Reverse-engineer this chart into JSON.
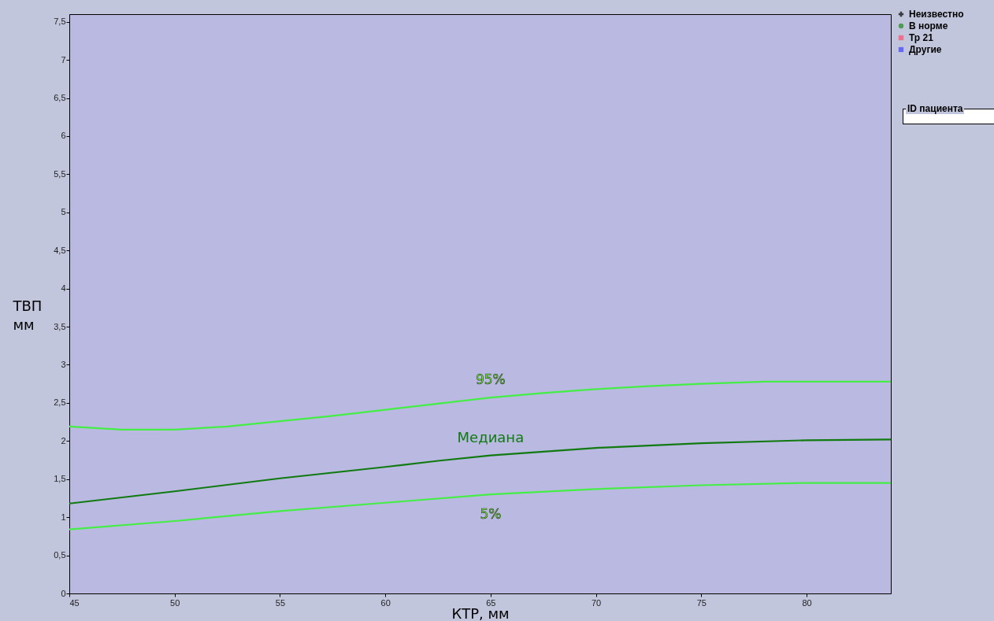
{
  "chart_data": {
    "type": "line",
    "xlabel": "КТР, мм",
    "ylabel": "ТВП мм",
    "xlim": [
      45,
      84
    ],
    "ylim": [
      0,
      7.6
    ],
    "xticks": [
      45,
      50,
      55,
      60,
      65,
      70,
      75,
      80
    ],
    "yticks": [
      0,
      {
        "value": 0.5,
        "label": "0,5"
      },
      1,
      {
        "value": 1.5,
        "label": "1,5"
      },
      2,
      {
        "value": 2.5,
        "label": "2,5"
      },
      3,
      {
        "value": 3.5,
        "label": "3,5"
      },
      4,
      {
        "value": 4.5,
        "label": "4,5"
      },
      5,
      {
        "value": 5.5,
        "label": "5,5"
      },
      6,
      {
        "value": 6.5,
        "label": "6,5"
      },
      7,
      {
        "value": 7.5,
        "label": "7,5"
      }
    ],
    "grid": false,
    "legend": "top right",
    "series": [
      {
        "name": "95%",
        "color": "#44ee44",
        "x": [
          45,
          47.5,
          50,
          52.5,
          55,
          57.5,
          60,
          62.5,
          65,
          67.5,
          70,
          72.5,
          75,
          78,
          80,
          84
        ],
        "values": [
          2.19,
          2.15,
          2.15,
          2.19,
          2.26,
          2.33,
          2.41,
          2.49,
          2.57,
          2.63,
          2.68,
          2.72,
          2.75,
          2.78,
          2.78,
          2.78
        ]
      },
      {
        "name": "Медиана",
        "color": "#117a11",
        "x": [
          45,
          50,
          55,
          60,
          62.5,
          65,
          70,
          75,
          80,
          84
        ],
        "values": [
          1.18,
          1.34,
          1.51,
          1.66,
          1.74,
          1.81,
          1.91,
          1.97,
          2.01,
          2.02
        ]
      },
      {
        "name": "5%",
        "color": "#44ee44",
        "x": [
          45,
          50,
          55,
          60,
          65,
          70,
          75,
          80,
          84
        ],
        "values": [
          0.84,
          0.95,
          1.08,
          1.19,
          1.3,
          1.37,
          1.42,
          1.45,
          1.45
        ]
      },
      {
        "name": "Неизвестно",
        "type": "scatter",
        "marker": "cross",
        "color": "#000000"
      },
      {
        "name": "В норме",
        "type": "scatter",
        "marker": "circle",
        "color": "#1a8a1a"
      },
      {
        "name": "Тр 21",
        "type": "scatter",
        "marker": "square",
        "color": "#ff4d6a"
      },
      {
        "name": "Другие",
        "type": "scatter",
        "marker": "square",
        "color": "#4040ff"
      }
    ],
    "annotations": [
      "ID пациента"
    ]
  }
}
